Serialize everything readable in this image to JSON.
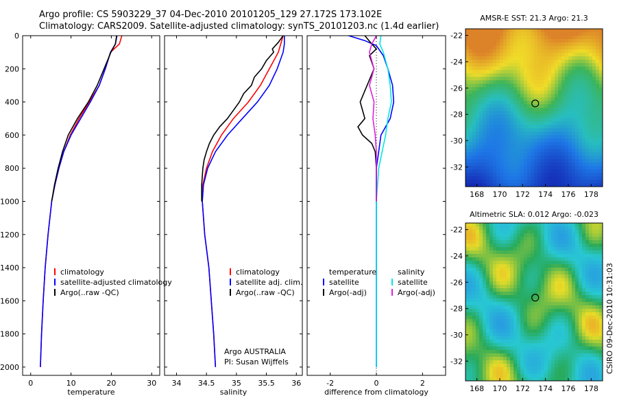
{
  "header": {
    "line1": "Argo profile: CS 5903229_37 04-Dec-2010 20101205_129 27.172S 173.102E",
    "line2": "Climatology: CARS2009. Satellite-adjusted climatology: synTS_20101203.nc (1.4d earlier)"
  },
  "side_label": "CSIRO 09-Dec-2010 10:31:03",
  "colors": {
    "climatology": "#ff0000",
    "satellite": "#0000ff",
    "argo": "#000000",
    "sal_satellite": "#00e5e5",
    "sal_argo": "#e020e0"
  },
  "chart_data": [
    {
      "id": "temperature-panel",
      "type": "line",
      "xlabel": "temperature",
      "ylabel": "",
      "xlim": [
        -2,
        32
      ],
      "ylim": [
        2050,
        0
      ],
      "y_inverted": true,
      "xticks": [
        0,
        10,
        20,
        30
      ],
      "yticks": [
        0,
        200,
        400,
        600,
        800,
        1000,
        1200,
        1400,
        1600,
        1800,
        2000
      ],
      "legend": {
        "position": "lower-right",
        "entries": [
          "climatology",
          "satellite-adjusted climatology",
          "Argo(..raw -QC)"
        ]
      },
      "series": [
        {
          "name": "climatology",
          "color": "#ff0000",
          "points": [
            [
              22.6,
              0
            ],
            [
              22,
              50
            ],
            [
              19.8,
              100
            ],
            [
              18.5,
              200
            ],
            [
              17,
              300
            ],
            [
              14.5,
              400
            ],
            [
              12,
              500
            ],
            [
              9.8,
              600
            ],
            [
              8.2,
              700
            ],
            [
              7,
              800
            ],
            [
              6,
              900
            ],
            [
              5.2,
              1000
            ],
            [
              4.3,
              1200
            ],
            [
              3.6,
              1400
            ],
            [
              3.1,
              1600
            ],
            [
              2.7,
              1800
            ],
            [
              2.4,
              2000
            ]
          ]
        },
        {
          "name": "satellite-adjusted climatology",
          "color": "#0000ff",
          "points": [
            [
              21.4,
              0
            ],
            [
              21,
              50
            ],
            [
              19.8,
              100
            ],
            [
              18.5,
              200
            ],
            [
              17,
              300
            ],
            [
              14.8,
              400
            ],
            [
              12.4,
              500
            ],
            [
              10,
              600
            ],
            [
              8.2,
              700
            ],
            [
              7,
              800
            ],
            [
              6,
              900
            ],
            [
              5.2,
              1000
            ],
            [
              4.3,
              1200
            ],
            [
              3.6,
              1400
            ],
            [
              3.1,
              1600
            ],
            [
              2.7,
              1800
            ],
            [
              2.4,
              2000
            ]
          ]
        },
        {
          "name": "Argo(..raw -QC)",
          "color": "#000000",
          "points": [
            [
              21.3,
              0
            ],
            [
              21,
              50
            ],
            [
              19.9,
              100
            ],
            [
              18.2,
              200
            ],
            [
              16.5,
              300
            ],
            [
              14.3,
              400
            ],
            [
              11.6,
              500
            ],
            [
              9.3,
              600
            ],
            [
              7.9,
              700
            ],
            [
              6.8,
              800
            ],
            [
              5.9,
              900
            ],
            [
              5.2,
              1000
            ]
          ]
        }
      ]
    },
    {
      "id": "salinity-panel",
      "type": "line",
      "xlabel": "salinity",
      "ylabel": "",
      "xlim": [
        33.8,
        36.1
      ],
      "ylim": [
        2050,
        0
      ],
      "y_inverted": true,
      "xticks": [
        34,
        34.5,
        35,
        35.5,
        36
      ],
      "yticks": [
        0,
        200,
        400,
        600,
        800,
        1000,
        1200,
        1400,
        1600,
        1800,
        2000
      ],
      "legend": {
        "position": "lower-right",
        "entries": [
          "climatology",
          "satellite adj. clim.",
          "Argo(..raw -QC)"
        ]
      },
      "annotation": [
        "Argo AUSTRALIA",
        "PI: Susan Wijffels"
      ],
      "series": [
        {
          "name": "climatology",
          "color": "#ff0000",
          "points": [
            [
              35.78,
              0
            ],
            [
              35.74,
              50
            ],
            [
              35.7,
              100
            ],
            [
              35.55,
              200
            ],
            [
              35.4,
              300
            ],
            [
              35.2,
              400
            ],
            [
              34.95,
              500
            ],
            [
              34.75,
              600
            ],
            [
              34.6,
              700
            ],
            [
              34.5,
              800
            ],
            [
              34.44,
              900
            ],
            [
              34.43,
              1000
            ],
            [
              34.47,
              1200
            ],
            [
              34.54,
              1400
            ],
            [
              34.58,
              1600
            ],
            [
              34.62,
              1800
            ],
            [
              34.65,
              2000
            ]
          ]
        },
        {
          "name": "satellite adj. clim.",
          "color": "#0000ff",
          "points": [
            [
              35.8,
              0
            ],
            [
              35.8,
              50
            ],
            [
              35.78,
              100
            ],
            [
              35.68,
              200
            ],
            [
              35.55,
              300
            ],
            [
              35.35,
              400
            ],
            [
              35.1,
              500
            ],
            [
              34.85,
              600
            ],
            [
              34.65,
              700
            ],
            [
              34.52,
              800
            ],
            [
              34.45,
              900
            ],
            [
              34.43,
              1000
            ],
            [
              34.47,
              1200
            ],
            [
              34.54,
              1400
            ],
            [
              34.58,
              1600
            ],
            [
              34.62,
              1800
            ],
            [
              34.65,
              2000
            ]
          ]
        },
        {
          "name": "Argo(..raw -QC)",
          "color": "#000000",
          "points": [
            [
              35.78,
              0
            ],
            [
              35.7,
              40
            ],
            [
              35.6,
              80
            ],
            [
              35.62,
              100
            ],
            [
              35.5,
              150
            ],
            [
              35.42,
              200
            ],
            [
              35.3,
              250
            ],
            [
              35.25,
              300
            ],
            [
              35.12,
              350
            ],
            [
              35.05,
              400
            ],
            [
              34.95,
              450
            ],
            [
              34.85,
              500
            ],
            [
              34.72,
              550
            ],
            [
              34.62,
              600
            ],
            [
              34.55,
              650
            ],
            [
              34.5,
              700
            ],
            [
              34.46,
              750
            ],
            [
              34.44,
              800
            ],
            [
              34.42,
              900
            ],
            [
              34.42,
              1000
            ]
          ]
        }
      ]
    },
    {
      "id": "difference-panel",
      "type": "line",
      "xlabel": "difference from climatology",
      "ylabel": "",
      "xlim": [
        -3,
        3
      ],
      "ylim": [
        2050,
        0
      ],
      "y_inverted": true,
      "xticks": [
        -2,
        0,
        2
      ],
      "yticks": [
        0,
        200,
        400,
        600,
        800,
        1000,
        1200,
        1400,
        1600,
        1800,
        2000
      ],
      "legend": {
        "position": "lower-center",
        "groups": [
          {
            "title": "temperature",
            "entries": [
              "satellite",
              "Argo(-adj)"
            ]
          },
          {
            "title": "salinity",
            "entries": [
              "satellite",
              "Argo(-adj)"
            ]
          }
        ]
      },
      "series": [
        {
          "name": "satellite",
          "group": "temperature",
          "color": "#0000ff",
          "points": [
            [
              -1.2,
              0
            ],
            [
              -0.5,
              30
            ],
            [
              0,
              60
            ],
            [
              0.3,
              120
            ],
            [
              0.5,
              200
            ],
            [
              0.7,
              300
            ],
            [
              0.75,
              400
            ],
            [
              0.6,
              500
            ],
            [
              0.4,
              550
            ],
            [
              0.2,
              600
            ],
            [
              0.1,
              700
            ],
            [
              0,
              800
            ],
            [
              0,
              900
            ],
            [
              0,
              2000
            ]
          ]
        },
        {
          "name": "satellite",
          "group": "salinity",
          "color": "#00e5e5",
          "points": [
            [
              0.2,
              0
            ],
            [
              0.15,
              50
            ],
            [
              0.3,
              100
            ],
            [
              0.5,
              200
            ],
            [
              0.6,
              300
            ],
            [
              0.65,
              400
            ],
            [
              0.5,
              500
            ],
            [
              0.4,
              600
            ],
            [
              0.25,
              700
            ],
            [
              0.1,
              800
            ],
            [
              0.05,
              900
            ],
            [
              0,
              1000
            ],
            [
              0,
              2000
            ]
          ]
        },
        {
          "name": "Argo(-adj)",
          "group": "temperature",
          "color": "#000000",
          "points": [
            [
              -0.5,
              0
            ],
            [
              -0.2,
              50
            ],
            [
              0,
              80
            ],
            [
              -0.3,
              120
            ],
            [
              -0.1,
              200
            ],
            [
              -0.4,
              300
            ],
            [
              -0.7,
              400
            ],
            [
              -0.5,
              500
            ],
            [
              -0.8,
              550
            ],
            [
              -0.6,
              600
            ],
            [
              -0.2,
              650
            ],
            [
              -0.05,
              700
            ],
            [
              0,
              800
            ],
            [
              0,
              900
            ],
            [
              0,
              1000
            ]
          ]
        },
        {
          "name": "Argo(-adj)",
          "group": "salinity",
          "color": "#e020e0",
          "points": [
            [
              0,
              0
            ],
            [
              -0.2,
              50
            ],
            [
              -0.3,
              100
            ],
            [
              -0.1,
              200
            ],
            [
              -0.3,
              300
            ],
            [
              -0.1,
              400
            ],
            [
              -0.15,
              500
            ],
            [
              -0.05,
              600
            ],
            [
              0,
              700
            ],
            [
              0,
              800
            ],
            [
              0,
              900
            ],
            [
              0,
              1000
            ]
          ]
        }
      ]
    },
    {
      "id": "sst-map",
      "type": "heatmap",
      "title": "AMSR-E SST: 21.3 Argo: 21.3",
      "xlabel": "",
      "ylabel": "",
      "xlim": [
        167,
        179
      ],
      "ylim": [
        -33.5,
        -21.5
      ],
      "xticks": [
        168,
        170,
        172,
        174,
        176,
        178
      ],
      "yticks": [
        -22,
        -24,
        -26,
        -28,
        -30,
        -32
      ],
      "marker": {
        "lon": 173.102,
        "lat": -27.172
      }
    },
    {
      "id": "sla-map",
      "type": "heatmap",
      "title": "Altimetric SLA: 0.012 Argo: -0.023",
      "xlabel": "",
      "ylabel": "",
      "xlim": [
        167,
        179
      ],
      "ylim": [
        -33.5,
        -21.5
      ],
      "xticks": [
        168,
        170,
        172,
        174,
        176,
        178
      ],
      "yticks": [
        -22,
        -24,
        -26,
        -28,
        -30,
        -32
      ],
      "marker": {
        "lon": 173.102,
        "lat": -27.172
      }
    }
  ]
}
